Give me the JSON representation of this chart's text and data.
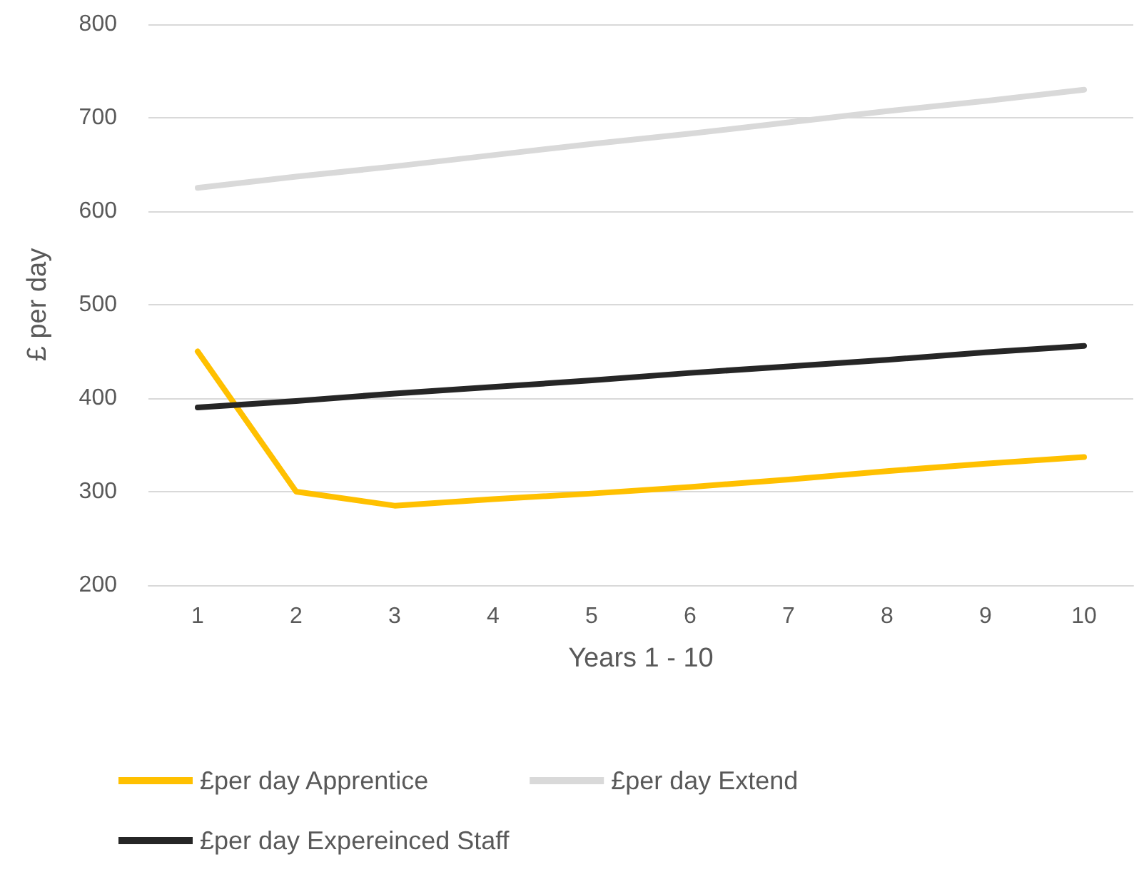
{
  "chart_data": {
    "type": "line",
    "xlabel": "Years 1 - 10",
    "ylabel": "£ per day",
    "categories": [
      "1",
      "2",
      "3",
      "4",
      "5",
      "6",
      "7",
      "8",
      "9",
      "10"
    ],
    "series": [
      {
        "name": "£per day Apprentice",
        "color": "#ffc000",
        "values": [
          450,
          300,
          285,
          292,
          298,
          305,
          313,
          322,
          330,
          337
        ]
      },
      {
        "name": "£per day Extend",
        "color": "#d9d9d9",
        "values": [
          625,
          637,
          648,
          660,
          672,
          683,
          695,
          707,
          718,
          730
        ]
      },
      {
        "name": "£per day Expereinced Staff",
        "color": "#262626",
        "values": [
          390,
          397,
          405,
          412,
          419,
          427,
          434,
          441,
          449,
          456
        ]
      }
    ],
    "ylim": [
      200,
      800
    ],
    "yticks": [
      200,
      300,
      400,
      500,
      600,
      700,
      800
    ],
    "grid": "y",
    "legend": "bottom",
    "marker": "none",
    "line_style": "solid"
  }
}
